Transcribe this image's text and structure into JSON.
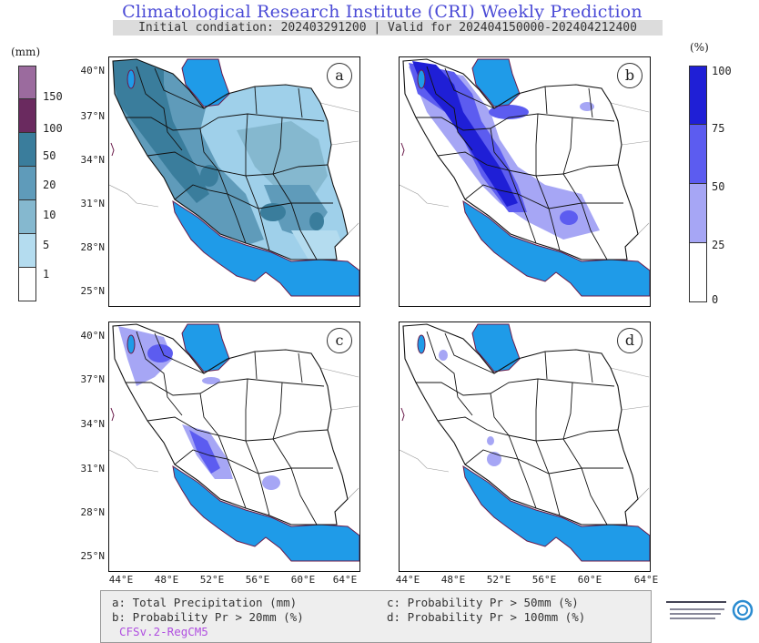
{
  "header": {
    "title": "Climatological Research Institute (CRI) Weekly Prediction",
    "subtitle": "Initial condiation: 202403291200 | Valid for 202404150000-202404212400"
  },
  "left_colorbar": {
    "unit": "(mm)",
    "levels": [
      "150",
      "100",
      "50",
      "20",
      "10",
      "5",
      "1"
    ],
    "colors": [
      "#9b6b9e",
      "#6a2a5f",
      "#3a7d9c",
      "#5f9bba",
      "#85b8cf",
      "#b4dcef",
      "#ffffff"
    ]
  },
  "right_colorbar": {
    "unit": "(%)",
    "levels": [
      "100",
      "75",
      "50",
      "25",
      "0"
    ],
    "colors": [
      "#1f1fd6",
      "#5c5cf0",
      "#a6a6f5",
      "#ffffff"
    ]
  },
  "panels": [
    {
      "label": "a"
    },
    {
      "label": "b"
    },
    {
      "label": "c"
    },
    {
      "label": "d"
    }
  ],
  "axes": {
    "lat_ticks": [
      "40°N",
      "37°N",
      "34°N",
      "31°N",
      "28°N",
      "25°N"
    ],
    "lon_ticks": [
      "44°E",
      "48°E",
      "52°E",
      "56°E",
      "60°E",
      "64°E"
    ]
  },
  "legend": {
    "a": "a: Total Precipitation (mm)",
    "b": "b: Probability Pr > 20mm (%)",
    "c": "c: Probability Pr > 50mm (%)",
    "d": "d: Probability Pr > 100mm (%)",
    "model": "CFSv.2-RegCM5"
  },
  "colors": {
    "sea": "#1f9be8",
    "title": "#4a4ad6",
    "model": "#b04fe0"
  }
}
